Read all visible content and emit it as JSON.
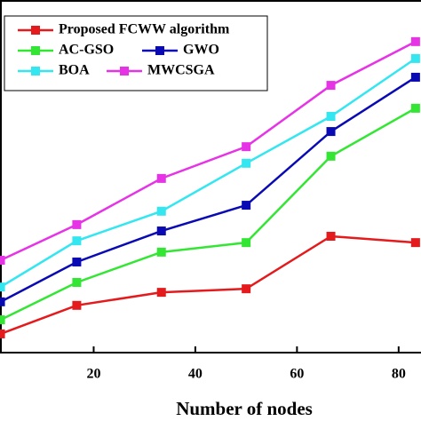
{
  "chart_data": {
    "type": "line",
    "x_label": "Number of nodes",
    "x": [
      1.67,
      16.67,
      33.33,
      50,
      66.67,
      83.33
    ],
    "xlim": [
      1.57,
      84.4
    ],
    "xticks": [
      20,
      40,
      60,
      80
    ],
    "ylim": [
      0,
      100
    ],
    "legend": "upper left",
    "series": [
      {
        "name": "Proposed FCWW algorithm",
        "color": "#e41a1c",
        "values": [
          5.3,
          13.4,
          17.1,
          18.1,
          33.0,
          31.2
        ]
      },
      {
        "name": "AC-GSO",
        "color": "#33e633",
        "values": [
          9.3,
          19.9,
          28.5,
          31.2,
          55.7,
          69.3
        ]
      },
      {
        "name": "GWO",
        "color": "#0a0ab4",
        "values": [
          14.4,
          25.7,
          34.5,
          41.8,
          62.7,
          78.1
        ]
      },
      {
        "name": "BOA",
        "color": "#33e6f0",
        "values": [
          18.6,
          31.7,
          40.1,
          53.7,
          67.0,
          83.4
        ]
      },
      {
        "name": "MWCSGA",
        "color": "#e633e6",
        "values": [
          26.2,
          36.3,
          49.4,
          58.4,
          75.8,
          88.2
        ]
      }
    ]
  }
}
